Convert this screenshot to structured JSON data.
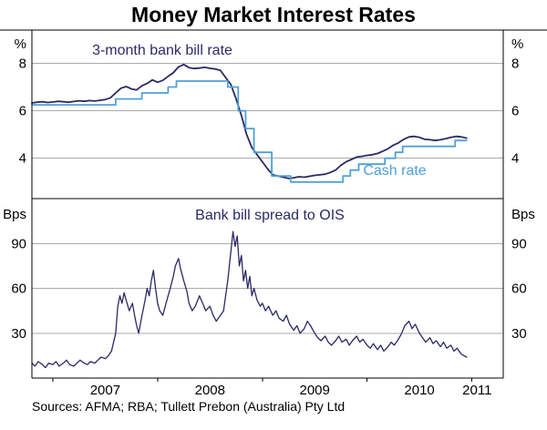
{
  "title": "Money Market Interest Rates",
  "sources": "Sources: AFMA; RBA; Tullett Prebon (Australia) Pty Ltd",
  "colors": {
    "bank_bill": "#2A2A66",
    "cash_rate": "#4FA0D8",
    "spread": "#2A2A66",
    "grid": "#ABABAB",
    "axis": "#000000",
    "text": "#000000"
  },
  "x_axis": {
    "ticks": [
      2007,
      2008,
      2009,
      2010,
      2011
    ],
    "labels": [
      {
        "t": 2007.5,
        "text": "2007"
      },
      {
        "t": 2008.5,
        "text": "2008"
      },
      {
        "t": 2009.5,
        "text": "2009"
      },
      {
        "t": 2010.5,
        "text": "2010"
      },
      {
        "t": 2011.05,
        "text": "2011"
      }
    ]
  },
  "chart_data": [
    {
      "type": "line",
      "panel": "top",
      "unit": "%",
      "ylabel": "%",
      "xlabel": "",
      "ylim": [
        2.3,
        9.4
      ],
      "yticks": [
        4,
        6,
        8
      ],
      "xlim": [
        2006.8,
        2011.3
      ],
      "grid": true,
      "series": [
        {
          "name": "3-month bank bill rate",
          "style": "line",
          "color_key": "bank_bill",
          "width": 1.8,
          "points": [
            [
              2006.8,
              6.33
            ],
            [
              2006.85,
              6.36
            ],
            [
              2006.9,
              6.38
            ],
            [
              2006.95,
              6.35
            ],
            [
              2007.0,
              6.37
            ],
            [
              2007.05,
              6.4
            ],
            [
              2007.1,
              6.38
            ],
            [
              2007.15,
              6.36
            ],
            [
              2007.2,
              6.39
            ],
            [
              2007.25,
              6.42
            ],
            [
              2007.3,
              6.4
            ],
            [
              2007.35,
              6.43
            ],
            [
              2007.4,
              6.41
            ],
            [
              2007.45,
              6.44
            ],
            [
              2007.5,
              6.47
            ],
            [
              2007.55,
              6.55
            ],
            [
              2007.6,
              6.75
            ],
            [
              2007.65,
              6.95
            ],
            [
              2007.7,
              7.02
            ],
            [
              2007.75,
              6.92
            ],
            [
              2007.8,
              6.88
            ],
            [
              2007.85,
              7.05
            ],
            [
              2007.9,
              7.15
            ],
            [
              2007.95,
              7.3
            ],
            [
              2008.0,
              7.2
            ],
            [
              2008.05,
              7.28
            ],
            [
              2008.1,
              7.45
            ],
            [
              2008.15,
              7.6
            ],
            [
              2008.2,
              7.85
            ],
            [
              2008.25,
              7.95
            ],
            [
              2008.3,
              7.82
            ],
            [
              2008.35,
              7.78
            ],
            [
              2008.4,
              7.8
            ],
            [
              2008.45,
              7.83
            ],
            [
              2008.5,
              7.79
            ],
            [
              2008.55,
              7.76
            ],
            [
              2008.6,
              7.7
            ],
            [
              2008.65,
              7.4
            ],
            [
              2008.7,
              7.1
            ],
            [
              2008.75,
              6.5
            ],
            [
              2008.8,
              5.8
            ],
            [
              2008.85,
              5.0
            ],
            [
              2008.9,
              4.45
            ],
            [
              2008.95,
              4.15
            ],
            [
              2009.0,
              3.85
            ],
            [
              2009.05,
              3.55
            ],
            [
              2009.1,
              3.3
            ],
            [
              2009.15,
              3.25
            ],
            [
              2009.2,
              3.2
            ],
            [
              2009.25,
              3.15
            ],
            [
              2009.3,
              3.18
            ],
            [
              2009.35,
              3.22
            ],
            [
              2009.4,
              3.2
            ],
            [
              2009.45,
              3.24
            ],
            [
              2009.5,
              3.28
            ],
            [
              2009.55,
              3.3
            ],
            [
              2009.6,
              3.33
            ],
            [
              2009.65,
              3.4
            ],
            [
              2009.7,
              3.5
            ],
            [
              2009.75,
              3.7
            ],
            [
              2009.8,
              3.85
            ],
            [
              2009.85,
              3.95
            ],
            [
              2009.9,
              4.05
            ],
            [
              2009.95,
              4.08
            ],
            [
              2010.0,
              4.12
            ],
            [
              2010.05,
              4.15
            ],
            [
              2010.1,
              4.2
            ],
            [
              2010.15,
              4.3
            ],
            [
              2010.2,
              4.4
            ],
            [
              2010.25,
              4.55
            ],
            [
              2010.3,
              4.65
            ],
            [
              2010.35,
              4.8
            ],
            [
              2010.4,
              4.9
            ],
            [
              2010.45,
              4.92
            ],
            [
              2010.5,
              4.88
            ],
            [
              2010.55,
              4.8
            ],
            [
              2010.6,
              4.78
            ],
            [
              2010.65,
              4.75
            ],
            [
              2010.7,
              4.78
            ],
            [
              2010.75,
              4.82
            ],
            [
              2010.8,
              4.88
            ],
            [
              2010.85,
              4.92
            ],
            [
              2010.9,
              4.9
            ],
            [
              2010.95,
              4.85
            ]
          ]
        },
        {
          "name": "Cash rate",
          "style": "step",
          "color_key": "cash_rate",
          "width": 1.8,
          "points": [
            [
              2006.8,
              6.25
            ],
            [
              2007.6,
              6.5
            ],
            [
              2007.85,
              6.75
            ],
            [
              2008.1,
              7.0
            ],
            [
              2008.18,
              7.25
            ],
            [
              2008.67,
              7.0
            ],
            [
              2008.77,
              6.0
            ],
            [
              2008.84,
              5.25
            ],
            [
              2008.92,
              4.25
            ],
            [
              2009.09,
              3.25
            ],
            [
              2009.27,
              3.0
            ],
            [
              2009.77,
              3.25
            ],
            [
              2009.84,
              3.5
            ],
            [
              2009.92,
              3.75
            ],
            [
              2010.17,
              4.0
            ],
            [
              2010.27,
              4.25
            ],
            [
              2010.34,
              4.5
            ],
            [
              2010.84,
              4.75
            ],
            [
              2010.95,
              4.75
            ]
          ]
        }
      ]
    },
    {
      "type": "line",
      "panel": "bottom",
      "title": "Bank bill spread to OIS",
      "unit": "Bps",
      "ylabel": "Bps",
      "xlabel": "",
      "ylim": [
        0,
        120
      ],
      "yticks": [
        30,
        60,
        90
      ],
      "xlim": [
        2006.8,
        2011.3
      ],
      "grid": true,
      "series": [
        {
          "name": "Bank bill spread to OIS",
          "style": "line",
          "color_key": "spread",
          "width": 1.3,
          "points": [
            [
              2006.8,
              10
            ],
            [
              2006.83,
              8
            ],
            [
              2006.86,
              11
            ],
            [
              2006.9,
              9
            ],
            [
              2006.93,
              7
            ],
            [
              2006.96,
              10
            ],
            [
              2007.0,
              9
            ],
            [
              2007.03,
              11
            ],
            [
              2007.06,
              8
            ],
            [
              2007.1,
              10
            ],
            [
              2007.13,
              12
            ],
            [
              2007.16,
              9
            ],
            [
              2007.2,
              8
            ],
            [
              2007.23,
              10
            ],
            [
              2007.26,
              12
            ],
            [
              2007.3,
              10
            ],
            [
              2007.33,
              9
            ],
            [
              2007.36,
              11
            ],
            [
              2007.4,
              10
            ],
            [
              2007.43,
              12
            ],
            [
              2007.46,
              14
            ],
            [
              2007.5,
              13
            ],
            [
              2007.53,
              15
            ],
            [
              2007.56,
              18
            ],
            [
              2007.6,
              30
            ],
            [
              2007.62,
              48
            ],
            [
              2007.64,
              55
            ],
            [
              2007.66,
              50
            ],
            [
              2007.68,
              57
            ],
            [
              2007.7,
              52
            ],
            [
              2007.73,
              45
            ],
            [
              2007.76,
              50
            ],
            [
              2007.78,
              42
            ],
            [
              2007.8,
              35
            ],
            [
              2007.82,
              30
            ],
            [
              2007.84,
              38
            ],
            [
              2007.86,
              45
            ],
            [
              2007.88,
              52
            ],
            [
              2007.9,
              60
            ],
            [
              2007.92,
              55
            ],
            [
              2007.94,
              65
            ],
            [
              2007.96,
              72
            ],
            [
              2007.98,
              60
            ],
            [
              2008.0,
              50
            ],
            [
              2008.02,
              45
            ],
            [
              2008.05,
              42
            ],
            [
              2008.08,
              50
            ],
            [
              2008.1,
              55
            ],
            [
              2008.12,
              60
            ],
            [
              2008.15,
              68
            ],
            [
              2008.17,
              75
            ],
            [
              2008.2,
              80
            ],
            [
              2008.22,
              73
            ],
            [
              2008.25,
              65
            ],
            [
              2008.28,
              58
            ],
            [
              2008.3,
              50
            ],
            [
              2008.33,
              45
            ],
            [
              2008.36,
              48
            ],
            [
              2008.4,
              55
            ],
            [
              2008.43,
              50
            ],
            [
              2008.46,
              45
            ],
            [
              2008.5,
              48
            ],
            [
              2008.53,
              42
            ],
            [
              2008.56,
              38
            ],
            [
              2008.6,
              42
            ],
            [
              2008.63,
              45
            ],
            [
              2008.65,
              55
            ],
            [
              2008.67,
              65
            ],
            [
              2008.7,
              85
            ],
            [
              2008.72,
              98
            ],
            [
              2008.74,
              88
            ],
            [
              2008.76,
              95
            ],
            [
              2008.78,
              75
            ],
            [
              2008.8,
              82
            ],
            [
              2008.82,
              65
            ],
            [
              2008.84,
              72
            ],
            [
              2008.86,
              60
            ],
            [
              2008.88,
              68
            ],
            [
              2008.9,
              55
            ],
            [
              2008.92,
              60
            ],
            [
              2008.95,
              52
            ],
            [
              2008.98,
              48
            ],
            [
              2009.0,
              50
            ],
            [
              2009.03,
              45
            ],
            [
              2009.06,
              48
            ],
            [
              2009.1,
              42
            ],
            [
              2009.13,
              45
            ],
            [
              2009.16,
              40
            ],
            [
              2009.2,
              38
            ],
            [
              2009.23,
              42
            ],
            [
              2009.26,
              36
            ],
            [
              2009.3,
              32
            ],
            [
              2009.33,
              35
            ],
            [
              2009.36,
              30
            ],
            [
              2009.4,
              33
            ],
            [
              2009.43,
              38
            ],
            [
              2009.46,
              35
            ],
            [
              2009.5,
              30
            ],
            [
              2009.53,
              27
            ],
            [
              2009.56,
              25
            ],
            [
              2009.6,
              28
            ],
            [
              2009.63,
              24
            ],
            [
              2009.66,
              22
            ],
            [
              2009.7,
              25
            ],
            [
              2009.73,
              28
            ],
            [
              2009.76,
              24
            ],
            [
              2009.8,
              26
            ],
            [
              2009.83,
              22
            ],
            [
              2009.86,
              25
            ],
            [
              2009.9,
              28
            ],
            [
              2009.93,
              24
            ],
            [
              2009.96,
              26
            ],
            [
              2010.0,
              22
            ],
            [
              2010.03,
              20
            ],
            [
              2010.06,
              23
            ],
            [
              2010.1,
              19
            ],
            [
              2010.13,
              22
            ],
            [
              2010.16,
              18
            ],
            [
              2010.2,
              21
            ],
            [
              2010.23,
              24
            ],
            [
              2010.26,
              22
            ],
            [
              2010.3,
              26
            ],
            [
              2010.33,
              30
            ],
            [
              2010.36,
              35
            ],
            [
              2010.4,
              38
            ],
            [
              2010.43,
              33
            ],
            [
              2010.46,
              36
            ],
            [
              2010.5,
              30
            ],
            [
              2010.53,
              27
            ],
            [
              2010.56,
              24
            ],
            [
              2010.6,
              27
            ],
            [
              2010.63,
              23
            ],
            [
              2010.66,
              25
            ],
            [
              2010.7,
              21
            ],
            [
              2010.73,
              24
            ],
            [
              2010.76,
              20
            ],
            [
              2010.8,
              22
            ],
            [
              2010.83,
              18
            ],
            [
              2010.86,
              20
            ],
            [
              2010.9,
              16
            ],
            [
              2010.95,
              14
            ]
          ]
        }
      ]
    }
  ]
}
